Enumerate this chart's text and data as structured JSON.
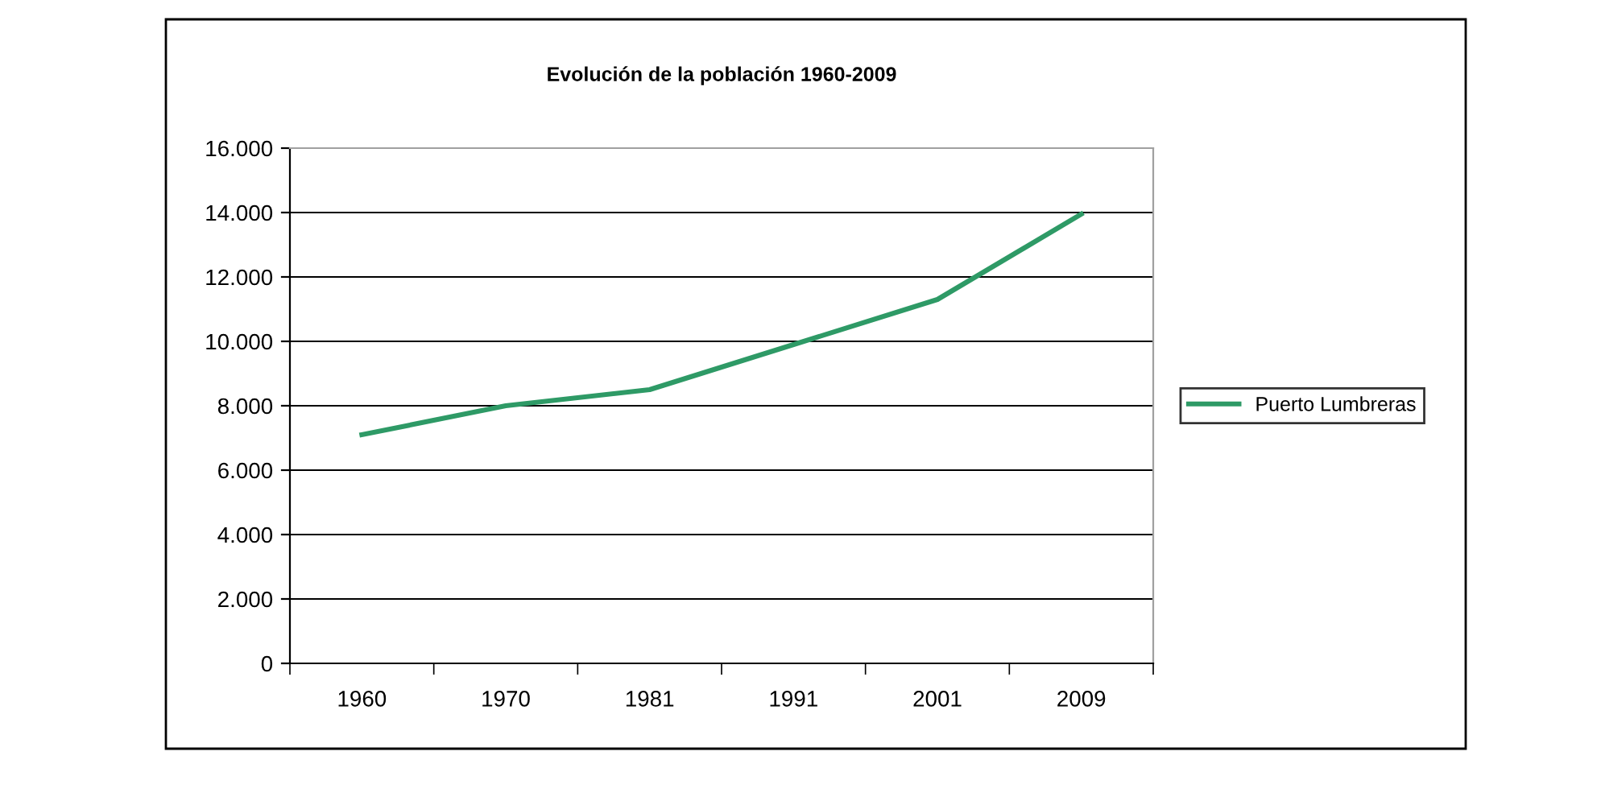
{
  "chart_data": {
    "type": "line",
    "title": "Evolución de la población 1960-2009",
    "categories": [
      "1960",
      "1970",
      "1981",
      "1991",
      "2001",
      "2009"
    ],
    "series": [
      {
        "name": "Puerto Lumbreras",
        "color": "#2e9a66",
        "values": [
          7100,
          8000,
          8500,
          9900,
          11300,
          13950
        ]
      }
    ],
    "ylim": [
      0,
      16000
    ],
    "yticks": [
      0,
      {
        "value": 2000,
        "label": "2.000"
      },
      {
        "value": 4000,
        "label": "4.000"
      },
      {
        "value": 6000,
        "label": "6.000"
      },
      {
        "value": 8000,
        "label": "8.000"
      },
      {
        "value": 10000,
        "label": "10.000"
      },
      {
        "value": 12000,
        "label": "12.000"
      },
      {
        "value": 14000,
        "label": "14.000"
      },
      {
        "value": 16000,
        "label": "16.000"
      }
    ],
    "grid": "y",
    "legend": "right",
    "marker": "none",
    "line_style": "solid"
  }
}
